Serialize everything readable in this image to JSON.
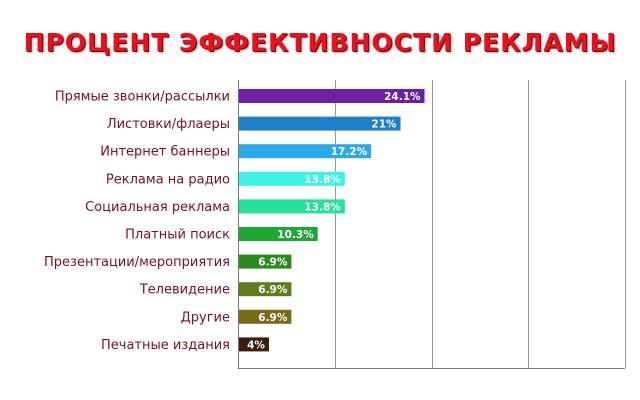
{
  "chart_data": {
    "type": "bar",
    "orientation": "horizontal",
    "title": "ПРОЦЕНТ ЭФФЕКТИВНОСТИ РЕКЛАМЫ",
    "categories": [
      "Прямые звонки/рассылки",
      "Листовки/флаеры",
      "Интернет баннеры",
      "Реклама на радио",
      "Социальная реклама",
      "Платный поиск",
      "Презентации/мероприятия",
      "Телевидение",
      "Другие",
      "Печатные издания"
    ],
    "values": [
      24.1,
      21,
      17.2,
      13.8,
      13.8,
      10.3,
      6.9,
      6.9,
      6.9,
      4
    ],
    "value_labels": [
      "24.1%",
      "21%",
      "17.2%",
      "13.8%",
      "13.8%",
      "10.3%",
      "6.9%",
      "6.9%",
      "6.9%",
      "4%"
    ],
    "bar_colors": [
      "#6a1fa8",
      "#1f7fc8",
      "#29a9e6",
      "#3ff2e8",
      "#23e09a",
      "#1ea833",
      "#2a8a1c",
      "#5f7d1e",
      "#7a6a18",
      "#3a1e0c"
    ],
    "xlim": [
      0,
      50
    ],
    "gridlines": [
      0,
      12.5,
      25,
      37.5,
      50
    ],
    "grid": true,
    "legend": "none",
    "title_color": "#e8121c",
    "label_color": "#7a0f1e"
  }
}
